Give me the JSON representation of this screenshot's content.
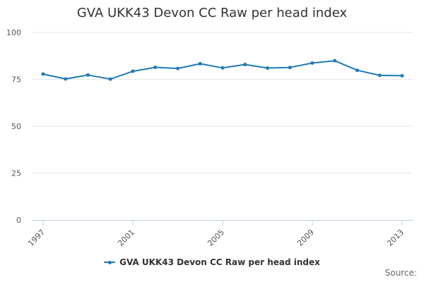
{
  "chart_data": {
    "type": "line",
    "title": "GVA UKK43 Devon CC Raw per head index",
    "xlabel": "",
    "ylabel": "",
    "x": [
      1997,
      1998,
      1999,
      2000,
      2001,
      2002,
      2003,
      2004,
      2005,
      2006,
      2007,
      2008,
      2009,
      2010,
      2011,
      2012,
      2013
    ],
    "x_tick_labels": [
      "1997",
      "2001",
      "2005",
      "2009",
      "2013"
    ],
    "y_tick_labels": [
      "0",
      "25",
      "50",
      "75",
      "100"
    ],
    "ylim": [
      0,
      100
    ],
    "grid": true,
    "legend_position": "bottom",
    "series": [
      {
        "name": "GVA UKK43 Devon CC Raw per head index",
        "color": "#1f7bb6",
        "values": [
          77.8,
          75.2,
          77.3,
          75.1,
          79.3,
          81.4,
          80.8,
          83.3,
          81.1,
          82.9,
          81.0,
          81.3,
          83.7,
          84.9,
          79.8,
          77.1,
          76.9
        ]
      }
    ]
  },
  "credits": "Source:"
}
